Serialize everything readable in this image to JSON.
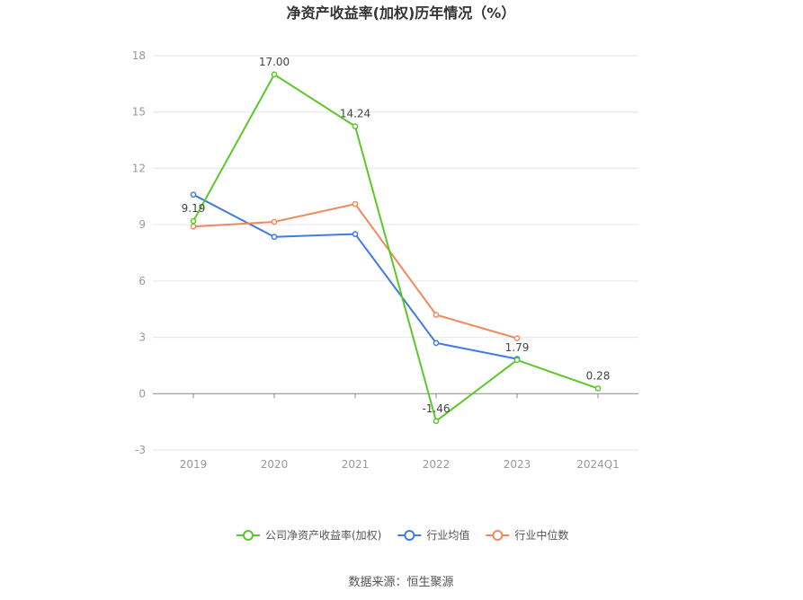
{
  "chart_data": {
    "type": "line",
    "title": "净资产收益率(加权)历年情况（%）",
    "categories": [
      "2019",
      "2020",
      "2021",
      "2022",
      "2023",
      "2024Q1"
    ],
    "ylim": [
      -3,
      18
    ],
    "yticks": [
      -3,
      0,
      3,
      6,
      9,
      12,
      15,
      18
    ],
    "grid": true,
    "legend_position": "bottom",
    "series": [
      {
        "name": "公司净资产收益率(加权)",
        "color": "#5ac828",
        "values": [
          9.19,
          17.0,
          14.24,
          -1.46,
          1.79,
          0.28
        ],
        "labels": [
          "9.19",
          "17.00",
          "14.24",
          "-1.46",
          "1.79",
          "0.28"
        ]
      },
      {
        "name": "行业均值",
        "color": "#3f7be0",
        "values": [
          10.6,
          8.35,
          8.5,
          2.7,
          1.85,
          null
        ]
      },
      {
        "name": "行业中位数",
        "color": "#f08a5c",
        "values": [
          8.9,
          9.15,
          10.1,
          4.2,
          2.95,
          null
        ]
      }
    ]
  },
  "source": "数据来源：恒生聚源"
}
